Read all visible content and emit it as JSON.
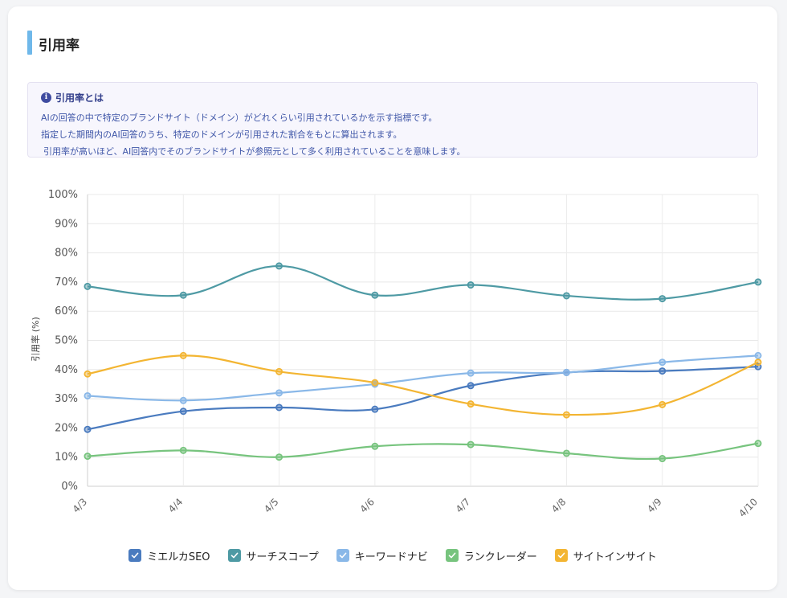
{
  "section": {
    "title": "引用率"
  },
  "info": {
    "heading": "引用率とは",
    "icon": "info-icon",
    "lines": [
      "AIの回答の中で特定のブランドサイト（ドメイン）がどれくらい引用されているかを示す指標です。",
      "指定した期間内のAI回答のうち、特定のドメインが引用された割合をもとに算出されます。",
      "引用率が高いほど、AI回答内でそのブランドサイトが参照元として多く利用されていることを意味します。"
    ]
  },
  "legend_check_icon": "check-icon",
  "chart_data": {
    "type": "line",
    "title": "",
    "xlabel": "",
    "ylabel": "引用率 (%)",
    "ylim": [
      0,
      100
    ],
    "yticks": [
      "0%",
      "10%",
      "20%",
      "30%",
      "40%",
      "50%",
      "60%",
      "70%",
      "80%",
      "90%",
      "100%"
    ],
    "grid": true,
    "legend": "bottom-center",
    "categories": [
      "4/3",
      "4/4",
      "4/5",
      "4/6",
      "4/7",
      "4/8",
      "4/9",
      "4/10"
    ],
    "series": [
      {
        "name": "ミエルカSEO",
        "color": "#4a7bbf",
        "values": [
          19.5,
          25.7,
          27.0,
          26.4,
          34.5,
          39.0,
          39.5,
          41.0
        ]
      },
      {
        "name": "サーチスコープ",
        "color": "#4e9aa4",
        "values": [
          68.5,
          65.5,
          75.5,
          65.5,
          69.0,
          65.3,
          64.3,
          70.0
        ]
      },
      {
        "name": "キーワードナビ",
        "color": "#8ab8e8",
        "values": [
          31.0,
          29.4,
          32.0,
          35.0,
          38.8,
          39.0,
          42.5,
          44.8
        ]
      },
      {
        "name": "ランクレーダー",
        "color": "#77c47e",
        "values": [
          10.3,
          12.3,
          10.0,
          13.7,
          14.3,
          11.3,
          9.5,
          14.7
        ]
      },
      {
        "name": "サイトインサイト",
        "color": "#f3b532",
        "values": [
          38.5,
          44.8,
          39.3,
          35.5,
          28.2,
          24.5,
          28.0,
          42.5
        ]
      }
    ]
  }
}
